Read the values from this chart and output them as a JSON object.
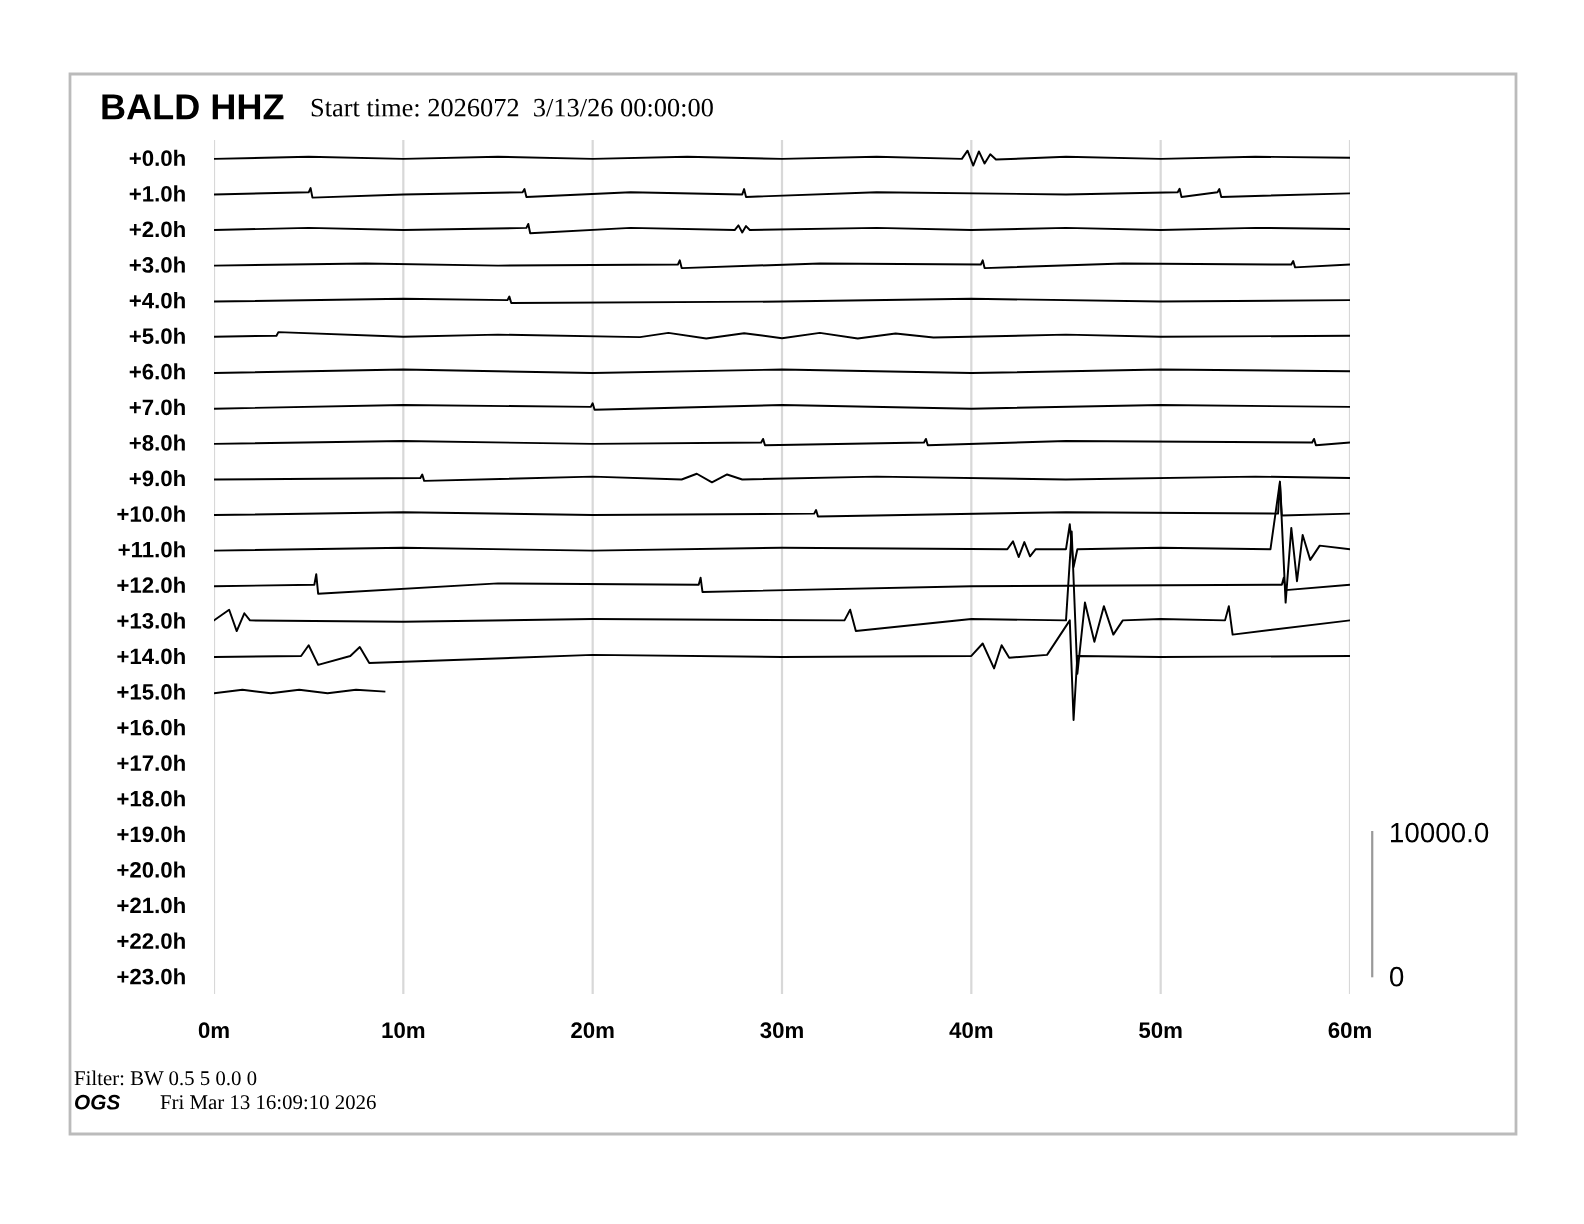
{
  "chart_data": {
    "type": "line",
    "title": "BALD HHZ",
    "subtitle": "Start time: 2026072  3/13/26 00:00:00",
    "annotations": [
      "Filter: BW 0.5 5 0.0 0",
      "OGS",
      "Fri Mar 13 16:09:10 2026"
    ],
    "xlim": [
      0,
      60
    ],
    "xticks": [
      {
        "value": 0,
        "label": "0m"
      },
      {
        "value": 10,
        "label": "10m"
      },
      {
        "value": 20,
        "label": "20m"
      },
      {
        "value": 30,
        "label": "30m"
      },
      {
        "value": 40,
        "label": "40m"
      },
      {
        "value": 50,
        "label": "50m"
      },
      {
        "value": 60,
        "label": "60m"
      }
    ],
    "ylim": [
      23.5,
      -0.5
    ],
    "yticks": [
      {
        "value": 0,
        "label": "+0.0h"
      },
      {
        "value": 1,
        "label": "+1.0h"
      },
      {
        "value": 2,
        "label": "+2.0h"
      },
      {
        "value": 3,
        "label": "+3.0h"
      },
      {
        "value": 4,
        "label": "+4.0h"
      },
      {
        "value": 5,
        "label": "+5.0h"
      },
      {
        "value": 6,
        "label": "+6.0h"
      },
      {
        "value": 7,
        "label": "+7.0h"
      },
      {
        "value": 8,
        "label": "+8.0h"
      },
      {
        "value": 9,
        "label": "+9.0h"
      },
      {
        "value": 10,
        "label": "+10.0h"
      },
      {
        "value": 11,
        "label": "+11.0h"
      },
      {
        "value": 12,
        "label": "+12.0h"
      },
      {
        "value": 13,
        "label": "+13.0h"
      },
      {
        "value": 14,
        "label": "+14.0h"
      },
      {
        "value": 15,
        "label": "+15.0h"
      },
      {
        "value": 16,
        "label": "+16.0h"
      },
      {
        "value": 17,
        "label": "+17.0h"
      },
      {
        "value": 18,
        "label": "+18.0h"
      },
      {
        "value": 19,
        "label": "+19.0h"
      },
      {
        "value": 20,
        "label": "+20.0h"
      },
      {
        "value": 21,
        "label": "+21.0h"
      },
      {
        "value": 22,
        "label": "+22.0h"
      },
      {
        "value": 23,
        "label": "+23.0h"
      }
    ],
    "y2lim": [
      -1235,
      58025
    ],
    "y2ticks": [
      0,
      {
        "value": 10000,
        "label": "10000.0"
      }
    ],
    "grid": "x",
    "line_style": "solid",
    "series": [
      {
        "color": "#000000",
        "x": [
          0,
          5,
          10,
          15,
          20,
          25,
          30,
          35,
          39.5,
          39.8,
          40.1,
          40.4,
          40.7,
          41,
          41.3,
          45,
          50,
          55,
          60
        ],
        "values": [
          0.03,
          -0.03,
          0.03,
          -0.03,
          0.03,
          -0.03,
          0.03,
          -0.03,
          0.03,
          -0.2,
          0.22,
          -0.18,
          0.16,
          -0.1,
          0.05,
          -0.03,
          0.03,
          -0.03,
          0
        ]
      },
      {
        "color": "#000000",
        "x": [
          0,
          5,
          5.1,
          5.2,
          10,
          16.3,
          16.4,
          16.5,
          22,
          27.9,
          28,
          28.1,
          35,
          45,
          50.9,
          51,
          51.1,
          53,
          53.1,
          53.2,
          60
        ],
        "values": [
          1.03,
          0.97,
          0.85,
          1.12,
          1.03,
          0.97,
          0.88,
          1.1,
          0.97,
          1.03,
          0.88,
          1.1,
          0.97,
          1.03,
          0.97,
          0.87,
          1.1,
          0.97,
          0.88,
          1.1,
          1.0
        ]
      },
      {
        "color": "#000000",
        "x": [
          0,
          5,
          10,
          16.5,
          16.6,
          16.7,
          22,
          27.5,
          27.7,
          27.9,
          28.1,
          28.3,
          35,
          40,
          45,
          50,
          55,
          60
        ],
        "values": [
          2.03,
          1.97,
          2.03,
          1.97,
          1.86,
          2.12,
          1.97,
          2.03,
          1.9,
          2.1,
          1.92,
          2.03,
          1.97,
          2.03,
          1.97,
          2.03,
          1.97,
          2.0
        ]
      },
      {
        "color": "#000000",
        "x": [
          0,
          8,
          15,
          24.5,
          24.6,
          24.7,
          32,
          40.5,
          40.6,
          40.7,
          48,
          56.9,
          57,
          57.1,
          60
        ],
        "values": [
          3.03,
          2.97,
          3.03,
          3.0,
          2.88,
          3.1,
          2.97,
          3.0,
          2.88,
          3.1,
          2.97,
          3.0,
          2.9,
          3.08,
          3.0
        ]
      },
      {
        "color": "#000000",
        "x": [
          0,
          10,
          15.5,
          15.6,
          15.7,
          30,
          40,
          50,
          60
        ],
        "values": [
          4.04,
          3.96,
          4.0,
          3.9,
          4.08,
          4.04,
          3.96,
          4.04,
          4.0
        ]
      },
      {
        "color": "#000000",
        "x": [
          0,
          3.3,
          3.4,
          10,
          15,
          22.5,
          24,
          26,
          28,
          30,
          32,
          34,
          36,
          38,
          45,
          50,
          60
        ],
        "values": [
          5.03,
          5.0,
          4.9,
          5.03,
          4.97,
          5.04,
          4.92,
          5.08,
          4.93,
          5.07,
          4.92,
          5.08,
          4.94,
          5.05,
          4.97,
          5.03,
          5.0
        ]
      },
      {
        "color": "#000000",
        "x": [
          0,
          10,
          20,
          30,
          40,
          50,
          60
        ],
        "values": [
          6.05,
          5.95,
          6.05,
          5.95,
          6.05,
          5.95,
          6.0
        ]
      },
      {
        "color": "#000000",
        "x": [
          0,
          10,
          19.9,
          20,
          20.1,
          30,
          40,
          50,
          60
        ],
        "values": [
          7.05,
          6.95,
          7.0,
          6.9,
          7.08,
          6.95,
          7.05,
          6.95,
          7.0
        ]
      },
      {
        "color": "#000000",
        "x": [
          0,
          10,
          20,
          28.9,
          29,
          29.1,
          37.5,
          37.6,
          37.7,
          45,
          58,
          58.1,
          58.2,
          60
        ],
        "values": [
          8.04,
          7.96,
          8.04,
          8.0,
          7.9,
          8.08,
          8.0,
          7.9,
          8.08,
          7.96,
          8.0,
          7.9,
          8.08,
          8.0
        ]
      },
      {
        "color": "#000000",
        "x": [
          0,
          10.9,
          11,
          11.1,
          20,
          24.7,
          25.5,
          26.3,
          27.1,
          27.9,
          35,
          45,
          55,
          60
        ],
        "values": [
          9.04,
          9.0,
          8.9,
          9.08,
          8.96,
          9.04,
          8.88,
          9.12,
          8.9,
          9.04,
          8.96,
          9.04,
          8.96,
          9.0
        ]
      },
      {
        "color": "#000000",
        "x": [
          0,
          10,
          20,
          31.7,
          31.8,
          31.9,
          45,
          56.2,
          56.3,
          56.4,
          60
        ],
        "values": [
          10.04,
          9.96,
          10.04,
          10.0,
          9.9,
          10.08,
          9.96,
          10.0,
          9.15,
          10.05,
          10.0
        ]
      },
      {
        "color": "#000000",
        "x": [
          0,
          10,
          20,
          30,
          41.9,
          42.2,
          42.5,
          42.8,
          43.1,
          43.4,
          45.0,
          45.2,
          45.4,
          45.6,
          50,
          55.8,
          56.3,
          56.6,
          56.9,
          57.2,
          57.5,
          57.9,
          58.4,
          60
        ],
        "values": [
          11.04,
          10.96,
          11.04,
          10.96,
          11.0,
          10.78,
          11.22,
          10.8,
          11.2,
          11.0,
          11.0,
          10.3,
          11.5,
          11.0,
          10.96,
          11.0,
          9.1,
          12.5,
          10.4,
          11.9,
          10.6,
          11.3,
          10.9,
          11.0
        ]
      },
      {
        "color": "#000000",
        "x": [
          0,
          5.3,
          5.4,
          5.5,
          15,
          25.6,
          25.7,
          25.8,
          40,
          56.4,
          56.5,
          56.6,
          60
        ],
        "values": [
          12.04,
          12.0,
          11.7,
          12.25,
          11.96,
          12.0,
          11.8,
          12.2,
          12.04,
          12.0,
          11.8,
          12.15,
          12.0
        ]
      },
      {
        "color": "#000000",
        "x": [
          0,
          0.8,
          1.2,
          1.6,
          1.9,
          10,
          20,
          33.3,
          33.6,
          33.9,
          40,
          45.0,
          45.3,
          45.6,
          46.0,
          46.5,
          47.0,
          47.5,
          48.0,
          50,
          53.4,
          53.6,
          53.8,
          60
        ],
        "values": [
          13.0,
          12.7,
          13.3,
          12.8,
          13.0,
          13.04,
          12.96,
          13.0,
          12.7,
          13.3,
          12.96,
          13.0,
          10.5,
          14.5,
          12.5,
          13.6,
          12.6,
          13.4,
          13.0,
          12.96,
          13.0,
          12.6,
          13.4,
          13.0
        ]
      },
      {
        "color": "#000000",
        "x": [
          0,
          4.6,
          5.0,
          5.5,
          7.2,
          7.7,
          8.2,
          20,
          30,
          40.0,
          40.6,
          41.2,
          41.6,
          42.0,
          44,
          45.2,
          45.4,
          45.6,
          50,
          60
        ],
        "values": [
          14.03,
          14.0,
          13.7,
          14.25,
          14.0,
          13.75,
          14.2,
          13.97,
          14.03,
          14.0,
          13.65,
          14.35,
          13.7,
          14.05,
          13.97,
          13.0,
          15.8,
          14.0,
          14.03,
          14.0
        ]
      },
      {
        "color": "#000000",
        "x": [
          0,
          1.5,
          3,
          4.5,
          6,
          7.5,
          9
        ],
        "values": [
          15.05,
          14.95,
          15.05,
          14.95,
          15.05,
          14.95,
          15.0
        ]
      }
    ]
  }
}
